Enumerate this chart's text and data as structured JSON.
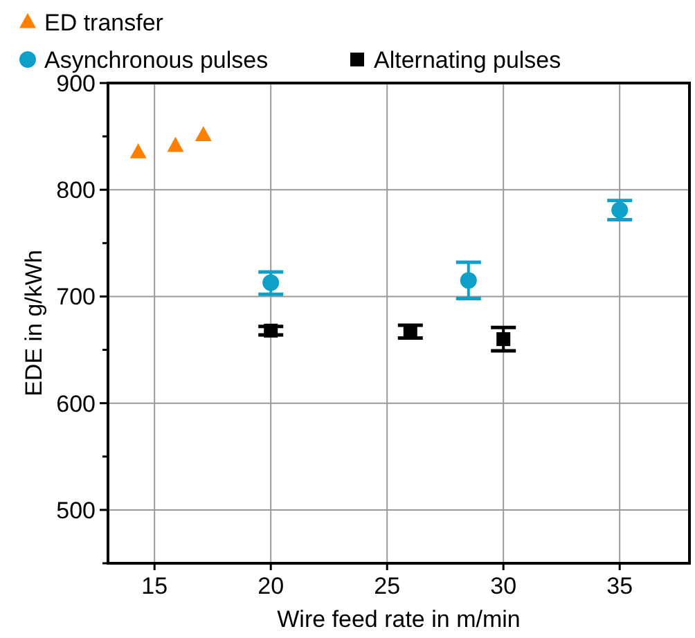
{
  "chart_data": {
    "type": "scatter",
    "xlabel": "Wire feed rate in m/min",
    "ylabel": "EDE in g/kWh",
    "xlim": [
      13,
      38
    ],
    "ylim": [
      450,
      900
    ],
    "xticks": [
      15,
      20,
      25,
      30,
      35
    ],
    "yticks": [
      {
        "value": 450,
        "label": null
      },
      500,
      {
        "value": 550,
        "label": null
      },
      600,
      {
        "value": 650,
        "label": null
      },
      700,
      {
        "value": 750,
        "label": null
      },
      800,
      {
        "value": 850,
        "label": null
      },
      900
    ],
    "grid": true,
    "legend": "top",
    "series": [
      {
        "name": "ED transfer",
        "color": "#ff7f00",
        "marker": "triangle",
        "x": [
          14.3,
          15.9,
          17.1
        ],
        "values": [
          835,
          841,
          851
        ]
      },
      {
        "name": "Asynchronous pulses",
        "color": "#0ea0c8",
        "marker": "circle",
        "x": [
          20,
          28.5,
          35
        ],
        "values": [
          713,
          715,
          781
        ],
        "errors": [
          [
            702,
            723
          ],
          [
            698,
            732
          ],
          [
            772,
            790
          ]
        ]
      },
      {
        "name": "Alternating pulses",
        "color": "#000000",
        "marker": "square",
        "x": [
          20,
          26,
          30
        ],
        "values": [
          668,
          667,
          660
        ],
        "errors": [
          [
            664,
            672
          ],
          [
            661,
            673
          ],
          [
            649,
            671
          ]
        ]
      }
    ]
  }
}
